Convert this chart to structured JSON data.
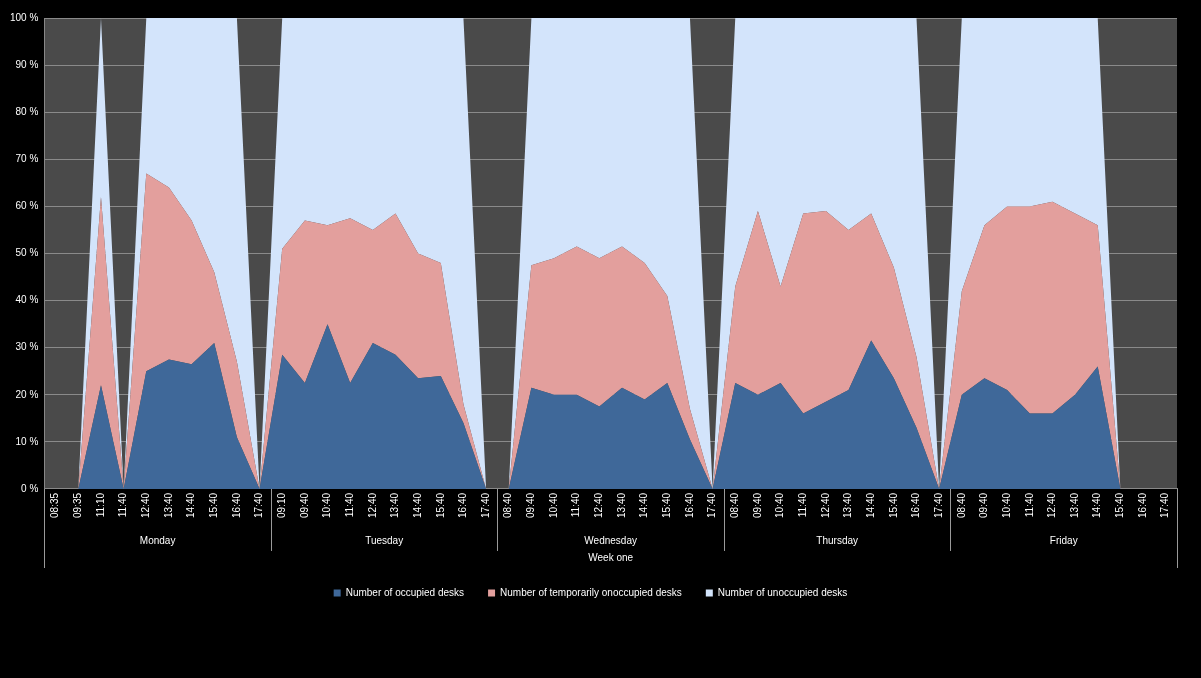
{
  "chart_data": {
    "type": "area",
    "stacked": true,
    "xlabel": "Week one",
    "categories": [
      "08:35",
      "09:35",
      "11:10",
      "11:40",
      "12:40",
      "13:40",
      "14:40",
      "15:40",
      "16:40",
      "17:40",
      "09:10",
      "09:40",
      "10:40",
      "11:40",
      "12:40",
      "13:40",
      "14:40",
      "15:40",
      "16:40",
      "17:40",
      "08:40",
      "09:40",
      "10:40",
      "11:40",
      "12:40",
      "13:40",
      "14:40",
      "15:40",
      "16:40",
      "17:40",
      "08:40",
      "09:40",
      "10:40",
      "11:40",
      "12:40",
      "13:40",
      "14:40",
      "15:40",
      "16:40",
      "17:40",
      "08:40",
      "09:40",
      "10:40",
      "11:40",
      "12:40",
      "13:40",
      "14:40",
      "15:40",
      "16:40",
      "17:40"
    ],
    "annotations": [
      "Monday",
      "Tuesday",
      "Wednesday",
      "Thursday",
      "Friday"
    ],
    "series": [
      {
        "name": "Number of occupied desks",
        "color": "#3f6899",
        "values": [
          0,
          0,
          22,
          0,
          25,
          27.5,
          26.5,
          31,
          11,
          0,
          28.5,
          22.5,
          35,
          22.5,
          31,
          28.5,
          23.5,
          24,
          14,
          0,
          0,
          21.5,
          20,
          20,
          17.5,
          21.5,
          19,
          22.5,
          10.5,
          0,
          22.5,
          20,
          22.5,
          16,
          18.5,
          21,
          31.5,
          23.5,
          13,
          0,
          20,
          23.5,
          21,
          16,
          16,
          20,
          26,
          0,
          0,
          0
        ]
      },
      {
        "name": "Number of temporarily onoccupied desks",
        "color": "#e39f9d",
        "values": [
          0,
          0,
          40,
          0,
          42,
          36.5,
          30.5,
          15,
          16,
          0,
          22.5,
          34.5,
          21,
          35,
          24,
          30,
          26.5,
          24,
          4,
          0,
          0,
          26,
          29,
          31.5,
          31.5,
          30,
          29,
          18.5,
          6.5,
          0,
          20.5,
          39,
          20.5,
          42.5,
          40.5,
          34,
          27,
          23.5,
          15,
          0,
          22,
          32.5,
          39,
          44,
          45,
          38.5,
          30,
          0,
          0,
          0
        ]
      },
      {
        "name": "Number of unoccupied desks",
        "color": "#d3e4fb",
        "values": [
          0,
          0,
          38,
          0,
          33,
          36,
          43,
          54,
          73,
          0,
          49,
          43,
          44,
          42.5,
          45,
          41.5,
          50,
          52,
          82,
          0,
          0,
          52.5,
          51,
          48.5,
          51,
          48.5,
          52,
          59,
          83,
          0,
          57,
          41,
          57,
          41.5,
          41,
          45,
          41.5,
          53,
          72,
          0,
          58,
          44,
          40,
          40,
          39,
          41.5,
          44,
          0,
          0,
          0
        ]
      }
    ],
    "ylim": [
      0,
      100
    ],
    "yticks": [
      {
        "value": 0,
        "label": "0 %"
      },
      {
        "value": 10,
        "label": "10 %"
      },
      {
        "value": 20,
        "label": "20 %"
      },
      {
        "value": 30,
        "label": "30 %"
      },
      {
        "value": 40,
        "label": "40 %"
      },
      {
        "value": 50,
        "label": "50 %"
      },
      {
        "value": 60,
        "label": "60 %"
      },
      {
        "value": 70,
        "label": "70 %"
      },
      {
        "value": 80,
        "label": "80 %"
      },
      {
        "value": 90,
        "label": "90 %"
      },
      {
        "value": 100,
        "label": "100 %"
      }
    ],
    "grid": "y",
    "legend": "bottom",
    "marker": "none"
  }
}
